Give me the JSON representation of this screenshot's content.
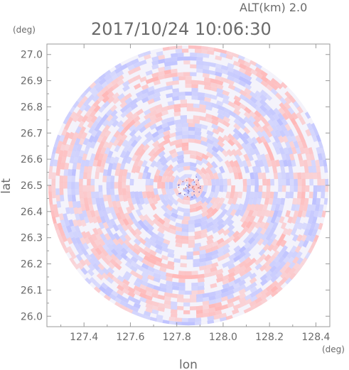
{
  "chart_data": {
    "type": "heatmap",
    "title": "2017/10/24 10:06:30",
    "altitude_label": "ALT(km) 2.0",
    "xlabel": "lon",
    "ylabel": "lat",
    "xunit": "(deg)",
    "yunit": "(deg)",
    "xlim": [
      127.24,
      128.46
    ],
    "ylim": [
      25.96,
      27.04
    ],
    "xticks": [
      "127.4",
      "127.6",
      "127.8",
      "128.0",
      "128.2",
      "128.4"
    ],
    "yticks": [
      "26.0",
      "26.1",
      "26.2",
      "26.3",
      "26.4",
      "26.5",
      "26.6",
      "26.7",
      "26.8",
      "26.9",
      "27.0"
    ],
    "domain": {
      "shape": "circle",
      "center_lon": 127.85,
      "center_lat": 26.5,
      "radius_lat_deg": 0.535
    },
    "colors": {
      "positive": "#ffb4b4",
      "negative": "#b9bdff",
      "frame": "#9a9a9a",
      "text": "#6a6a6a"
    },
    "grid": false,
    "legend": "none"
  }
}
